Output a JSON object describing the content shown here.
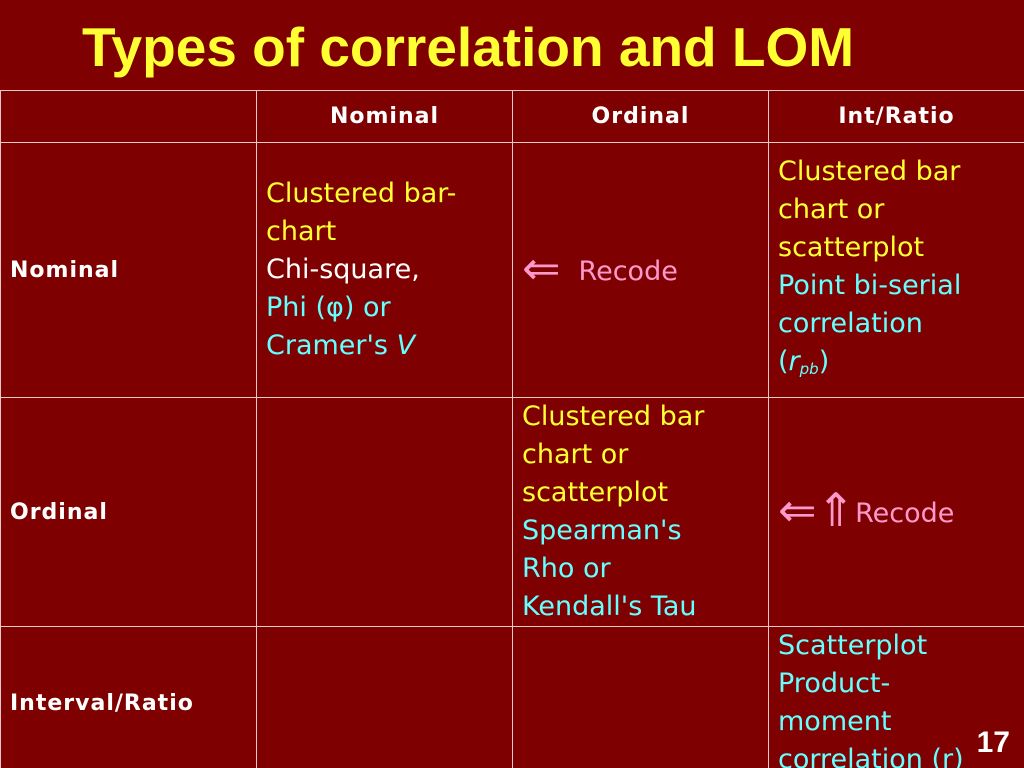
{
  "title": "Types of correlation and LOM",
  "columns": [
    "",
    "Nominal",
    "Ordinal",
    "Int/Ratio"
  ],
  "rows": [
    {
      "label": "Nominal",
      "nominal": {
        "line1": "Clustered bar-",
        "line2": "chart",
        "line3": "Chi-square,",
        "line4": "Phi (φ) or",
        "line5_prefix": "Cramer's ",
        "line5_italic": "V"
      },
      "ordinal": {
        "arrow": "⇐",
        "text": "Recode"
      },
      "int_ratio": {
        "line1": "Clustered bar",
        "line2": "chart or",
        "line3": "scatterplot",
        "line4": "Point bi-serial",
        "line5": "correlation",
        "line6_open": "(",
        "line6_r": "r",
        "line6_sub": "pb",
        "line6_close": ")"
      }
    },
    {
      "label": "Ordinal",
      "nominal": "",
      "ordinal": {
        "line1": "Clustered bar",
        "line2": "chart or",
        "line3": "scatterplot",
        "line4": "Spearman's",
        "line5": "Rho or",
        "line6": "Kendall's Tau"
      },
      "int_ratio": {
        "arrow": "⇐⇑",
        "text": "Recode"
      }
    },
    {
      "label": "Interval/Ratio",
      "nominal": "",
      "ordinal": "",
      "int_ratio": {
        "line1": "Scatterplot",
        "line2": "Product-",
        "line3": "moment",
        "line4": "correlation (r)"
      }
    }
  ],
  "page_number": "17"
}
